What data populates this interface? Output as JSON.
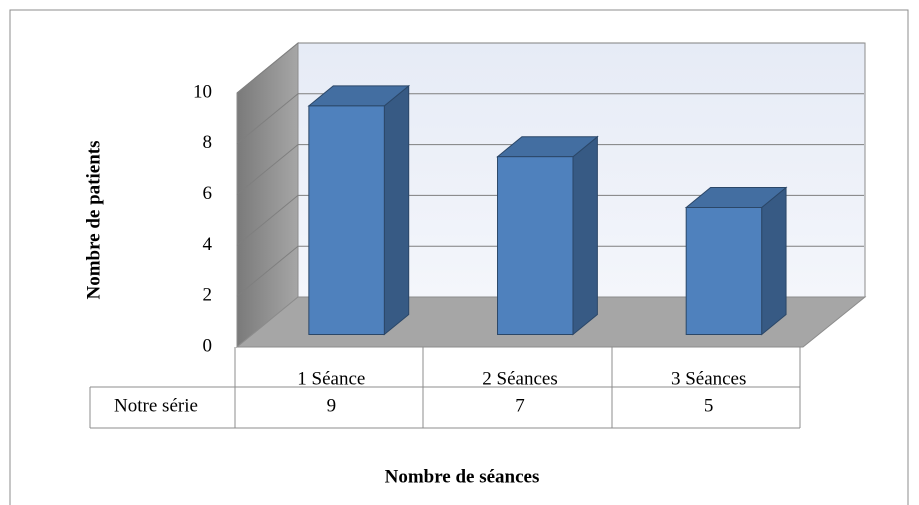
{
  "chart_data": {
    "type": "bar3d",
    "categories": [
      "1 Séance",
      "2 Séances",
      "3 Séances"
    ],
    "series": [
      {
        "name": "Notre série",
        "color": "#4f81bd",
        "values": [
          9,
          7,
          5
        ]
      }
    ],
    "ylim": [
      0,
      10
    ],
    "yticks": [
      0,
      2,
      4,
      6,
      8,
      10
    ],
    "grid": true,
    "y_label": "Nombre de patients",
    "x_label": "Nombre de séances"
  }
}
